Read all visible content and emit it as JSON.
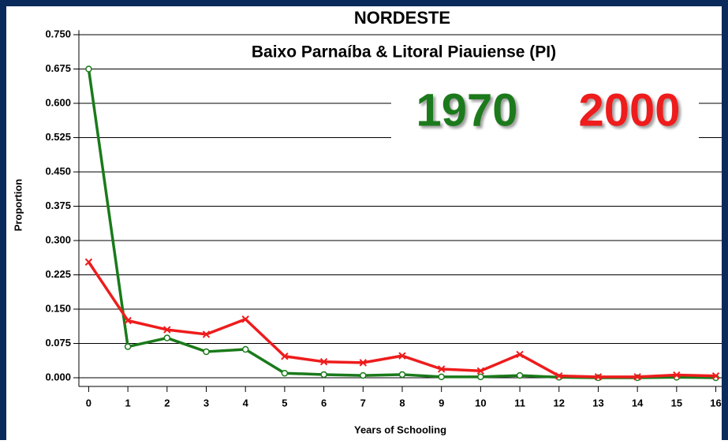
{
  "chart_data": {
    "type": "line",
    "title": "NORDESTE",
    "subtitle": "Baixo Parnaíba & Litoral Piauiense (PI)",
    "x_label": "Years of Schooling",
    "y_label": "Proportion",
    "x": [
      0,
      1,
      2,
      3,
      4,
      5,
      6,
      7,
      8,
      9,
      10,
      11,
      12,
      13,
      14,
      15,
      16
    ],
    "series": [
      {
        "name": "1970",
        "color": "#1a7a1a",
        "marker": "circle",
        "values": [
          0.675,
          0.068,
          0.087,
          0.057,
          0.062,
          0.01,
          0.007,
          0.005,
          0.007,
          0.002,
          0.002,
          0.005,
          0.001,
          0.0,
          0.0,
          0.001,
          0.0
        ]
      },
      {
        "name": "2000",
        "color": "#ee1c1c",
        "marker": "x",
        "values": [
          0.253,
          0.125,
          0.105,
          0.095,
          0.128,
          0.047,
          0.035,
          0.033,
          0.048,
          0.019,
          0.015,
          0.051,
          0.004,
          0.002,
          0.002,
          0.006,
          0.004
        ]
      }
    ],
    "xlim": [
      -0.25,
      16.15
    ],
    "xticks": [
      0,
      1,
      2,
      3,
      4,
      5,
      6,
      7,
      8,
      9,
      10,
      11,
      12,
      13,
      14,
      15,
      16
    ],
    "ylim": [
      -0.019,
      0.76
    ],
    "yticks": [
      {
        "value": 0,
        "label": "0.000"
      },
      {
        "value": 0.075,
        "label": "0.075"
      },
      {
        "value": 0.15,
        "label": "0.150"
      },
      {
        "value": 0.225,
        "label": "0.225"
      },
      {
        "value": 0.3,
        "label": "0.300"
      },
      {
        "value": 0.375,
        "label": "0.375"
      },
      {
        "value": 0.45,
        "label": "0.450"
      },
      {
        "value": 0.525,
        "label": "0.525"
      },
      {
        "value": 0.6,
        "label": "0.600"
      },
      {
        "value": 0.675,
        "label": "0.675"
      },
      {
        "value": 0.75,
        "label": "0.750"
      }
    ],
    "grid": true
  }
}
